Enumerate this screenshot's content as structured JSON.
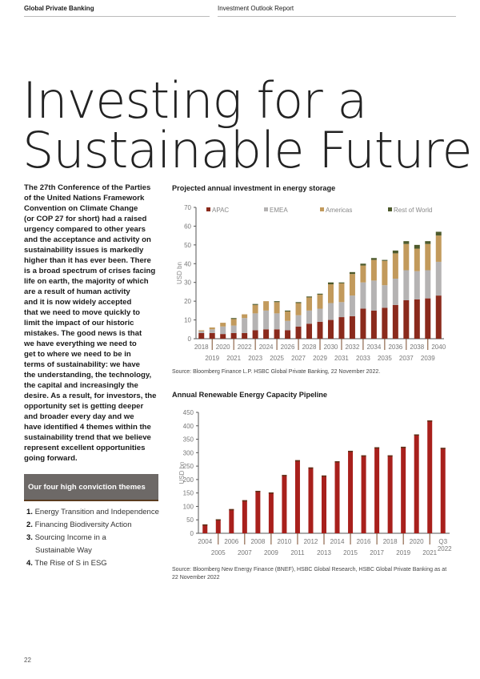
{
  "header": {
    "left": "Global Private Banking",
    "right": "Investment Outlook Report"
  },
  "title": {
    "line1": "Investing for a",
    "line2": "Sustainable Future"
  },
  "body_lines": [
    "The 27th Conference of the Parties",
    "of the United Nations Framework",
    "Convention on Climate Change",
    "(or COP 27 for short) had a raised",
    "urgency compared to other years",
    "and the acceptance and activity on",
    "sustainability issues is markedly",
    "higher than it has ever been. There",
    "is a broad spectrum of crises facing",
    "life on earth, the majority of which",
    "are a result of human activity",
    "and it is now widely accepted",
    "that we need to move quickly to",
    "limit the impact of our historic",
    "mistakes. The good news is that",
    "we have everything we need to",
    "get to where we need to be in",
    "terms of sustainability: we have",
    "the understanding, the technology,",
    "the capital and increasingly the",
    "desire. As a result, for investors, the",
    "opportunity set is getting deeper",
    "and broader every day and we",
    "have identified 4 themes within the",
    "sustainability trend that we believe",
    "represent excellent opportunities",
    "going forward."
  ],
  "themes": {
    "heading": "Our four high conviction themes",
    "items": [
      {
        "num": "1.",
        "text": "Energy Transition and Independence"
      },
      {
        "num": "2.",
        "text": "Financing Biodiversity Action"
      },
      {
        "num": "3.",
        "text": "Sourcing Income in a",
        "text2": "Sustainable Way"
      },
      {
        "num": "4.",
        "text": "The Rise of S in ESG"
      }
    ]
  },
  "page_number": "22",
  "chart_data": [
    {
      "type": "bar",
      "stacked": true,
      "title": "Projected annual investment in energy storage",
      "ylabel": "USD bn",
      "ylim": [
        0,
        70
      ],
      "yticks": [
        0,
        10,
        20,
        30,
        40,
        50,
        60,
        70
      ],
      "categories": [
        "2018",
        "2019",
        "2020",
        "2021",
        "2022",
        "2023",
        "2024",
        "2025",
        "2026",
        "2027",
        "2028",
        "2029",
        "2030",
        "2031",
        "2032",
        "2033",
        "2034",
        "2035",
        "2036",
        "2037",
        "2038",
        "2039",
        "2040"
      ],
      "series": [
        {
          "name": "APAC",
          "color": "#8a2a1c",
          "values": [
            3,
            3,
            2.5,
            3,
            3,
            4.5,
            5,
            5,
            4.5,
            6.5,
            8,
            9,
            10,
            11.5,
            12,
            16,
            15,
            16.5,
            18,
            20.5,
            21,
            21.5,
            23
          ]
        },
        {
          "name": "EMEA",
          "color": "#b5b3b3",
          "values": [
            1,
            2,
            4,
            4,
            8,
            9,
            10,
            8.5,
            5,
            6,
            7,
            7,
            9,
            8,
            11,
            14,
            16,
            12,
            14,
            16,
            15,
            15,
            18
          ]
        },
        {
          "name": "Americas",
          "color": "#c29a5c",
          "values": [
            0.5,
            1,
            2,
            3.5,
            2,
            4.5,
            5,
            6,
            5,
            6.5,
            7,
            7.5,
            10,
            10,
            11.5,
            9,
            11,
            13,
            13.5,
            14,
            12,
            14,
            14
          ]
        },
        {
          "name": "Rest of World",
          "color": "#4d5a2c",
          "values": [
            0,
            0,
            0,
            0.5,
            0,
            0.5,
            0,
            0.5,
            0.5,
            0.5,
            0.5,
            0.5,
            1,
            0.5,
            1,
            1,
            1,
            0.5,
            1.5,
            1.5,
            2,
            1.5,
            2
          ]
        }
      ],
      "legend": "top",
      "source": "Source: Bloomberg Finance L.P. HSBC Global Private Banking, 22 November 2022."
    },
    {
      "type": "bar",
      "title": "Annual Renewable Energy Capacity Pipeline",
      "ylabel": "USD bn",
      "ylim": [
        0,
        450
      ],
      "yticks": [
        0,
        50,
        100,
        150,
        200,
        250,
        300,
        350,
        400,
        450
      ],
      "categories": [
        "2004",
        "2005",
        "2006",
        "2007",
        "2008",
        "2009",
        "2010",
        "2011",
        "2012",
        "2013",
        "2014",
        "2015",
        "2016",
        "2017",
        "2018",
        "2019",
        "2020",
        "2021",
        "Q3 2022"
      ],
      "values": [
        33,
        52,
        90,
        123,
        158,
        152,
        217,
        272,
        245,
        215,
        268,
        307,
        290,
        320,
        290,
        322,
        368,
        420,
        318
      ],
      "color": "#a8201c",
      "source_lines": [
        "Source: Bloomberg New Energy Finance (BNEF), HSBC Global Research, HSBC Global Private Banking as at",
        "22 November 2022"
      ]
    }
  ]
}
